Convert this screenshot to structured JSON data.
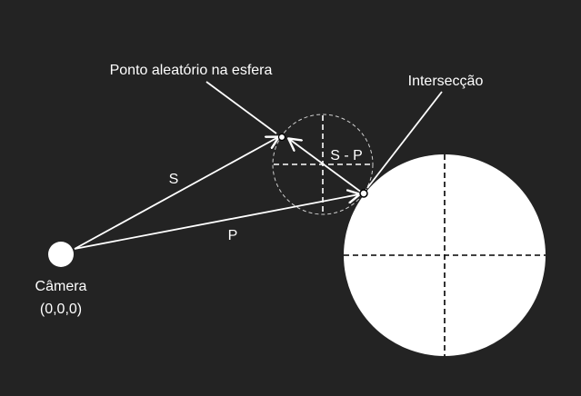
{
  "labels": {
    "random_point": "Ponto aleatório na esfera",
    "intersection": "Intersecção",
    "vector_s": "S",
    "vector_p": "P",
    "vector_s_minus_p": "S - P",
    "camera": "Câmera",
    "camera_coords": "(0,0,0)"
  },
  "colors": {
    "background": "#232323",
    "foreground": "#ffffff",
    "dashed_circle": "#cfcfcf",
    "sphere_axes": "#000000"
  }
}
